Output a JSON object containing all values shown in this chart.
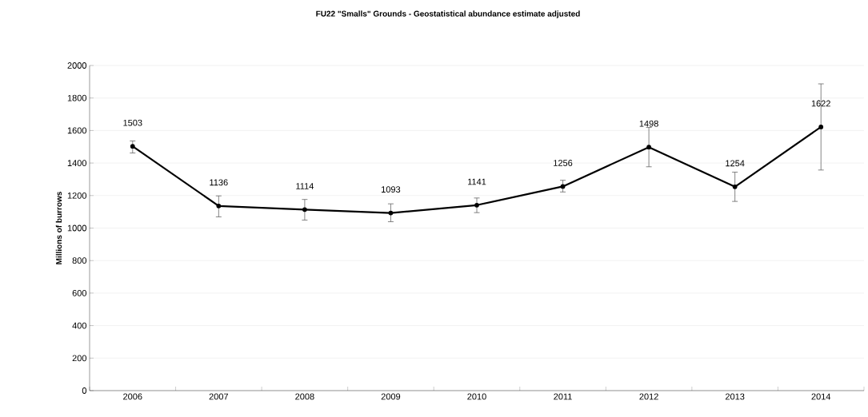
{
  "chart_data": {
    "type": "line",
    "title": "FU22 \"Smalls\" Grounds -  Geostatistical abundance estimate adjusted",
    "ylabel": "Millions of burrows",
    "categories": [
      "2006",
      "2007",
      "2008",
      "2009",
      "2010",
      "2011",
      "2012",
      "2013",
      "2014"
    ],
    "values": [
      1503,
      1136,
      1114,
      1093,
      1141,
      1256,
      1498,
      1254,
      1622
    ],
    "errors": [
      [
        1462,
        1536
      ],
      [
        1069,
        1198
      ],
      [
        1049,
        1176
      ],
      [
        1039,
        1149
      ],
      [
        1095,
        1185
      ],
      [
        1222,
        1294
      ],
      [
        1377,
        1619
      ],
      [
        1164,
        1344
      ],
      [
        1357,
        1887
      ]
    ],
    "color": "#000000",
    "marker": "circle",
    "line_style": "solid",
    "data_labels": true,
    "grid": "y",
    "ylim": [
      0,
      2000
    ],
    "yticks": [
      0,
      200,
      400,
      600,
      800,
      1000,
      1200,
      1400,
      1600,
      1800,
      2000
    ]
  }
}
